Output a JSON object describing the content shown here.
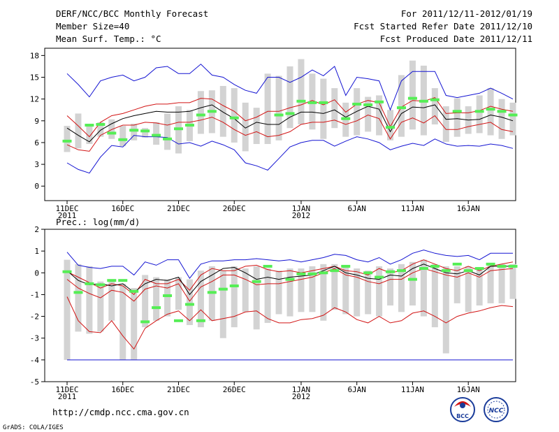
{
  "header": {
    "left": [
      "DERF/NCC/BCC Monthly Forecast",
      "Member Size=40",
      "Mean Surf. Temp.: °C"
    ],
    "right": [
      "For 2011/12/11-2012/01/19",
      "Fcst Started Refer Date 2011/12/10",
      "Fcst Produced Date 2011/12/11"
    ]
  },
  "footer": {
    "url": "http://cmdp.ncc.cma.gov.cn",
    "credit": "GrADS: COLA/IGES",
    "logo_left": "BCC",
    "logo_right": "NCC"
  },
  "colors": {
    "max": "#1414d2",
    "min": "#1414d2",
    "upper": "#d21414",
    "lower": "#d21414",
    "mean": "#000000",
    "bar": "#d3d3d3",
    "obs": "#55ee55"
  },
  "chart_data": [
    {
      "type": "line",
      "title": "Mean Surf. Temp.: °C",
      "x_tick_labels": [
        {
          "day": 0,
          "text": "11DEC",
          "sub": "2011"
        },
        {
          "day": 5,
          "text": "16DEC"
        },
        {
          "day": 10,
          "text": "21DEC"
        },
        {
          "day": 15,
          "text": "26DEC"
        },
        {
          "day": 21,
          "text": "1JAN",
          "sub": "2012"
        },
        {
          "day": 26,
          "text": "6JAN"
        },
        {
          "day": 31,
          "text": "11JAN"
        },
        {
          "day": 36,
          "text": "16JAN"
        }
      ],
      "ylim": [
        -2,
        19
      ],
      "yticks": [
        0,
        3,
        6,
        9,
        12,
        15,
        18
      ],
      "series": [
        {
          "name": "max",
          "values": [
            15.5,
            14,
            12.3,
            14.5,
            15,
            15.3,
            14.5,
            15,
            16.3,
            16.5,
            15.5,
            15.5,
            16.8,
            15.3,
            15,
            14,
            13.2,
            12.8,
            15,
            15,
            14.3,
            15,
            16,
            15.2,
            16.5,
            12.5,
            15,
            14.8,
            14.5,
            10.5,
            14.5,
            15.8,
            15.8,
            15.8,
            12.5,
            12.2,
            12.5,
            12.8,
            13.5,
            12.8,
            12
          ]
        },
        {
          "name": "upper",
          "values": [
            9.7,
            8.3,
            6.8,
            8.8,
            9.7,
            10,
            10.5,
            11,
            11.3,
            11.3,
            11.5,
            11.5,
            12.1,
            12,
            11.1,
            10.3,
            9,
            9.5,
            10.3,
            10.3,
            10.8,
            11.2,
            11.8,
            11.2,
            11.9,
            10.2,
            11.3,
            11.8,
            11.5,
            8.2,
            10.9,
            11.8,
            11.7,
            12.2,
            10,
            10.1,
            10.1,
            10.4,
            11,
            10.6,
            10.3
          ]
        },
        {
          "name": "mean",
          "values": [
            8,
            7,
            6.1,
            7.7,
            8.6,
            9.3,
            9.7,
            10,
            10.3,
            10.2,
            10.2,
            10.3,
            10.8,
            11.2,
            10.2,
            9.3,
            8,
            8.8,
            8.5,
            8.5,
            9.5,
            10.2,
            10.2,
            10,
            10.5,
            9.5,
            10.3,
            11,
            10.6,
            7.5,
            10,
            10.9,
            10.8,
            11.2,
            9.2,
            9.3,
            9.1,
            9.2,
            9.8,
            9.5,
            9
          ]
        },
        {
          "name": "lower",
          "values": [
            5.7,
            5,
            4.8,
            7,
            7.8,
            8.4,
            8.4,
            8.8,
            8.7,
            8.4,
            8.8,
            8.8,
            9.1,
            9.5,
            8.8,
            7.8,
            7,
            7.5,
            6.8,
            7,
            7.5,
            8.5,
            8.8,
            8.8,
            9.1,
            8.5,
            9,
            9.8,
            9.3,
            6.5,
            8.8,
            9.4,
            8.7,
            9.7,
            7.8,
            7.8,
            8.2,
            8.5,
            8.8,
            7.8,
            7.5
          ]
        },
        {
          "name": "min",
          "values": [
            3.2,
            2.3,
            1.8,
            4,
            5.6,
            5.4,
            7,
            6.8,
            6.8,
            6.7,
            5.8,
            6,
            5.5,
            6.2,
            5.7,
            5,
            3.2,
            2.8,
            2.2,
            3.8,
            5.4,
            6,
            6.3,
            6.3,
            5.5,
            6.2,
            6.8,
            6.5,
            6,
            5,
            5.5,
            5.9,
            5.6,
            6.5,
            5.8,
            5.5,
            5.6,
            5.5,
            5.8,
            5.6,
            5.2
          ]
        },
        {
          "name": "bar_top",
          "values": [
            8.3,
            10,
            8.5,
            8.8,
            9.2,
            8.3,
            8.6,
            8,
            8.8,
            10,
            11,
            10.5,
            13.1,
            13.2,
            13.8,
            13.5,
            11.5,
            10.8,
            15.5,
            15.2,
            16.5,
            17.5,
            15.5,
            14.8,
            13.5,
            11.5,
            13.5,
            12.3,
            12.5,
            10.5,
            15.3,
            17.3,
            16.6,
            13.5,
            11,
            12.1,
            11,
            12.5,
            13.5,
            12,
            11.5
          ]
        },
        {
          "name": "bar_bottom",
          "values": [
            4.7,
            5.2,
            5.8,
            6.8,
            6.5,
            5.5,
            6.3,
            6.7,
            5.7,
            5,
            4.5,
            6.2,
            7.2,
            7.3,
            6.8,
            6,
            4.8,
            5.8,
            5.8,
            6.3,
            8,
            8.5,
            7.8,
            6.5,
            8,
            6.8,
            7,
            7.5,
            7,
            6.3,
            6.8,
            7.8,
            7,
            8.5,
            6.1,
            6.8,
            7.2,
            7.3,
            7,
            6.5,
            7
          ]
        },
        {
          "name": "observed",
          "values": [
            6.2,
            null,
            8.4,
            8.5,
            7.3,
            6.4,
            7.7,
            7.6,
            7,
            6.5,
            7.9,
            8.4,
            9.8,
            10.3,
            null,
            9.4,
            null,
            null,
            null,
            9.8,
            10,
            11.7,
            11.5,
            11.5,
            null,
            9.3,
            11.3,
            11.2,
            11.6,
            8.1,
            10.8,
            12.1,
            11.7,
            11.9,
            null,
            10.3,
            null,
            10.3,
            10.6,
            10.3,
            9.8
          ]
        }
      ]
    },
    {
      "type": "line",
      "title": "Prec.: log(mm/d)",
      "x_tick_labels": [
        {
          "day": 0,
          "text": "11DEC",
          "sub": "2011"
        },
        {
          "day": 5,
          "text": "16DEC"
        },
        {
          "day": 10,
          "text": "21DEC"
        },
        {
          "day": 15,
          "text": "26DEC"
        },
        {
          "day": 21,
          "text": "1JAN",
          "sub": "2012"
        },
        {
          "day": 26,
          "text": "6JAN"
        },
        {
          "day": 31,
          "text": "11JAN"
        },
        {
          "day": 36,
          "text": "16JAN"
        }
      ],
      "ylim": [
        -5,
        2
      ],
      "yticks": [
        -5,
        -4,
        -3,
        -2,
        -1,
        0,
        1,
        2
      ],
      "series": [
        {
          "name": "max",
          "values": [
            0.95,
            0.35,
            0.25,
            0.2,
            0.3,
            0.3,
            -0.1,
            0.5,
            0.35,
            0.6,
            0.6,
            -0.25,
            0.4,
            0.55,
            0.55,
            0.6,
            0.6,
            0.65,
            0.6,
            0.55,
            0.6,
            0.5,
            0.6,
            0.7,
            0.85,
            0.8,
            0.6,
            0.5,
            0.7,
            0.4,
            0.6,
            0.9,
            1.05,
            0.9,
            0.8,
            0.75,
            0.8,
            0.6,
            0.9,
            0.9,
            0.9
          ]
        },
        {
          "name": "upper",
          "values": [
            0.05,
            -0.2,
            -0.45,
            -0.7,
            -0.5,
            -0.6,
            -1,
            -0.3,
            -0.5,
            -0.5,
            -0.3,
            -0.8,
            -0.1,
            0.2,
            0.1,
            0.1,
            0.3,
            0.35,
            0.15,
            0.05,
            0.1,
            0,
            0.1,
            0.2,
            0.3,
            0.1,
            0.05,
            -0.1,
            0.2,
            0,
            0.1,
            0.4,
            0.6,
            0.4,
            0.2,
            0.1,
            0.3,
            0.1,
            0.3,
            0.4,
            0.5
          ]
        },
        {
          "name": "mean",
          "values": [
            0.1,
            -0.35,
            -0.55,
            -0.5,
            -0.6,
            -0.5,
            -0.9,
            -0.5,
            -0.3,
            -0.35,
            -0.2,
            -1,
            -0.4,
            -0.1,
            0.2,
            0.25,
            0,
            -0.3,
            -0.2,
            -0.3,
            -0.2,
            -0.15,
            -0.1,
            0.1,
            0.3,
            0,
            -0.1,
            -0.25,
            -0.3,
            -0.1,
            -0.15,
            0.2,
            0.4,
            0.2,
            0,
            -0.05,
            0.1,
            -0.1,
            0.3,
            0.3,
            0.3
          ]
        },
        {
          "name": "lower",
          "values": [
            -0.3,
            -0.7,
            -0.95,
            -1.15,
            -0.8,
            -0.9,
            -1.3,
            -0.75,
            -0.6,
            -0.7,
            -0.5,
            -1.3,
            -0.65,
            -0.4,
            -0.1,
            -0.1,
            -0.3,
            -0.55,
            -0.5,
            -0.5,
            -0.4,
            -0.3,
            -0.2,
            0,
            0.2,
            -0.1,
            -0.2,
            -0.4,
            -0.5,
            -0.3,
            -0.3,
            0,
            0.2,
            0.05,
            -0.1,
            -0.2,
            0,
            -0.2,
            0.1,
            0.15,
            0.2
          ]
        },
        {
          "name": "lower2",
          "values": [
            -1.1,
            -2.2,
            -2.7,
            -2.75,
            -2.2,
            -2.9,
            -3.5,
            -2.55,
            -2.2,
            -1.9,
            -1.75,
            -2.2,
            -1.7,
            -2.2,
            -2.1,
            -2.0,
            -1.8,
            -1.75,
            -2.1,
            -2.3,
            -2.3,
            -2.15,
            -2.1,
            -1.95,
            -1.6,
            -1.8,
            -2.15,
            -2.3,
            -2.0,
            -2.3,
            -2.2,
            -1.85,
            -1.75,
            -2.0,
            -2.3,
            -2.0,
            -1.85,
            -1.75,
            -1.6,
            -1.5,
            -1.55
          ]
        },
        {
          "name": "min",
          "values": [
            -4,
            -4,
            -4,
            -4,
            -4,
            -4,
            -4,
            -4,
            -4,
            -4,
            -4,
            -4,
            -4,
            -4,
            -4,
            -4,
            -4,
            -4,
            -4,
            -4,
            -4,
            -4,
            -4,
            -4,
            -4,
            -4,
            -4,
            -4,
            -4,
            -4,
            -4,
            -4,
            -4,
            -4,
            -4,
            -4,
            -4,
            -4,
            -4,
            -4,
            -4
          ]
        },
        {
          "name": "bar_top",
          "values": [
            0.6,
            0.4,
            0.3,
            -0.4,
            -0.4,
            -0.5,
            -0.7,
            -0.1,
            -0.2,
            -0.3,
            -0.2,
            -0.3,
            0.1,
            0.3,
            0.1,
            0.3,
            0.2,
            0.3,
            0.2,
            0.1,
            0.2,
            0.2,
            0.3,
            0.4,
            0.4,
            0.3,
            0.2,
            0.1,
            0.3,
            0.2,
            0.4,
            0.5,
            0.6,
            0.4,
            0.3,
            0.3,
            0.3,
            0.2,
            0.4,
            0.4,
            0.4
          ]
        },
        {
          "name": "bar_bottom",
          "values": [
            -4,
            -2.7,
            -2.8,
            -2.7,
            -2.2,
            -4,
            -4,
            -2.5,
            -2.2,
            -2,
            -1.7,
            -2.4,
            -2.5,
            -2.2,
            -3,
            -2.5,
            -1.8,
            -2.6,
            -2.3,
            -1.9,
            -2,
            -1.8,
            -1.8,
            -2.2,
            -1.7,
            -1.9,
            -2,
            -1.9,
            -2,
            -1.5,
            -1.8,
            -1.5,
            -2,
            -2.5,
            -3.7,
            -1.4,
            -1.8,
            -1.5,
            -1.4,
            -1.4,
            -1.2
          ]
        },
        {
          "name": "observed",
          "values": [
            0.05,
            -0.9,
            -0.5,
            -0.55,
            -0.35,
            -0.35,
            -0.85,
            -2.25,
            -1.6,
            -1.05,
            -2.2,
            -1.45,
            -2.2,
            -0.9,
            -0.75,
            -0.6,
            null,
            -0.4,
            0.3,
            null,
            -0.3,
            -0.05,
            -0.05,
            0,
            0.1,
            0.3,
            null,
            0,
            -0.2,
            0.05,
            0.1,
            -0.3,
            0.2,
            0.3,
            0.1,
            0.4,
            0.1,
            0.2,
            0.4,
            0.3,
            0.3
          ]
        }
      ]
    }
  ]
}
